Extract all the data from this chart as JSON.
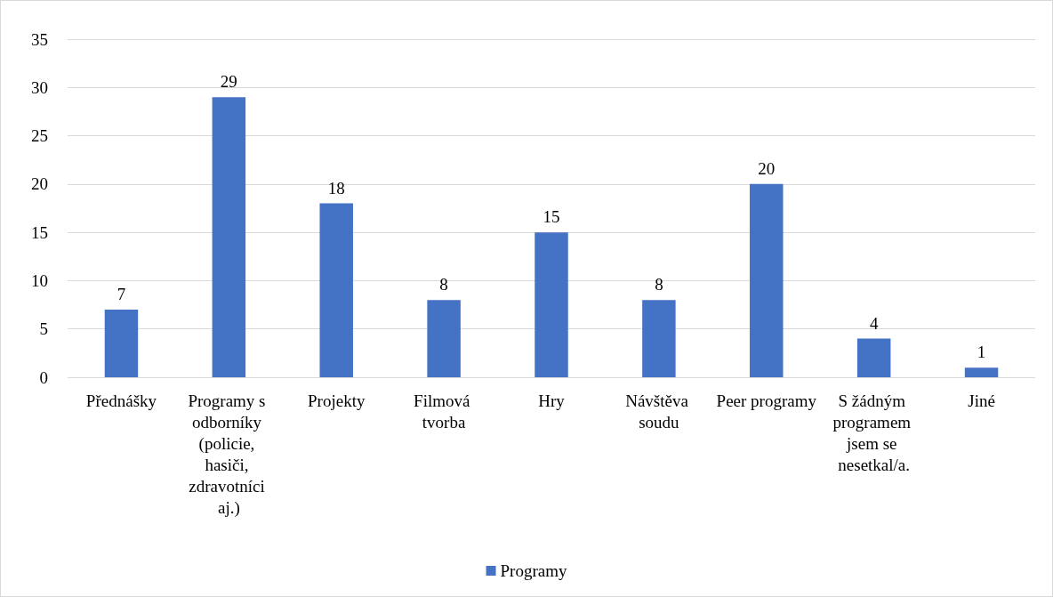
{
  "chart_data": {
    "type": "bar",
    "categories": [
      "Přednášky",
      "Programy s odborníky (policie, hasiči, zdravotníci aj.)",
      "Projekty",
      "Filmová tvorba",
      "Hry",
      "Návštěva soudu",
      "Peer programy",
      "S žádným programem jsem se nesetkal/a.",
      "Jiné"
    ],
    "series": [
      {
        "name": "Programy",
        "color": "#4472c4",
        "values": [
          7,
          29,
          18,
          8,
          15,
          8,
          20,
          4,
          1
        ]
      }
    ],
    "ylim": [
      0,
      35
    ],
    "yticks": [
      0,
      5,
      10,
      15,
      20,
      25,
      30,
      35
    ],
    "grid": "y",
    "legend": "bottom",
    "data_labels": true
  }
}
